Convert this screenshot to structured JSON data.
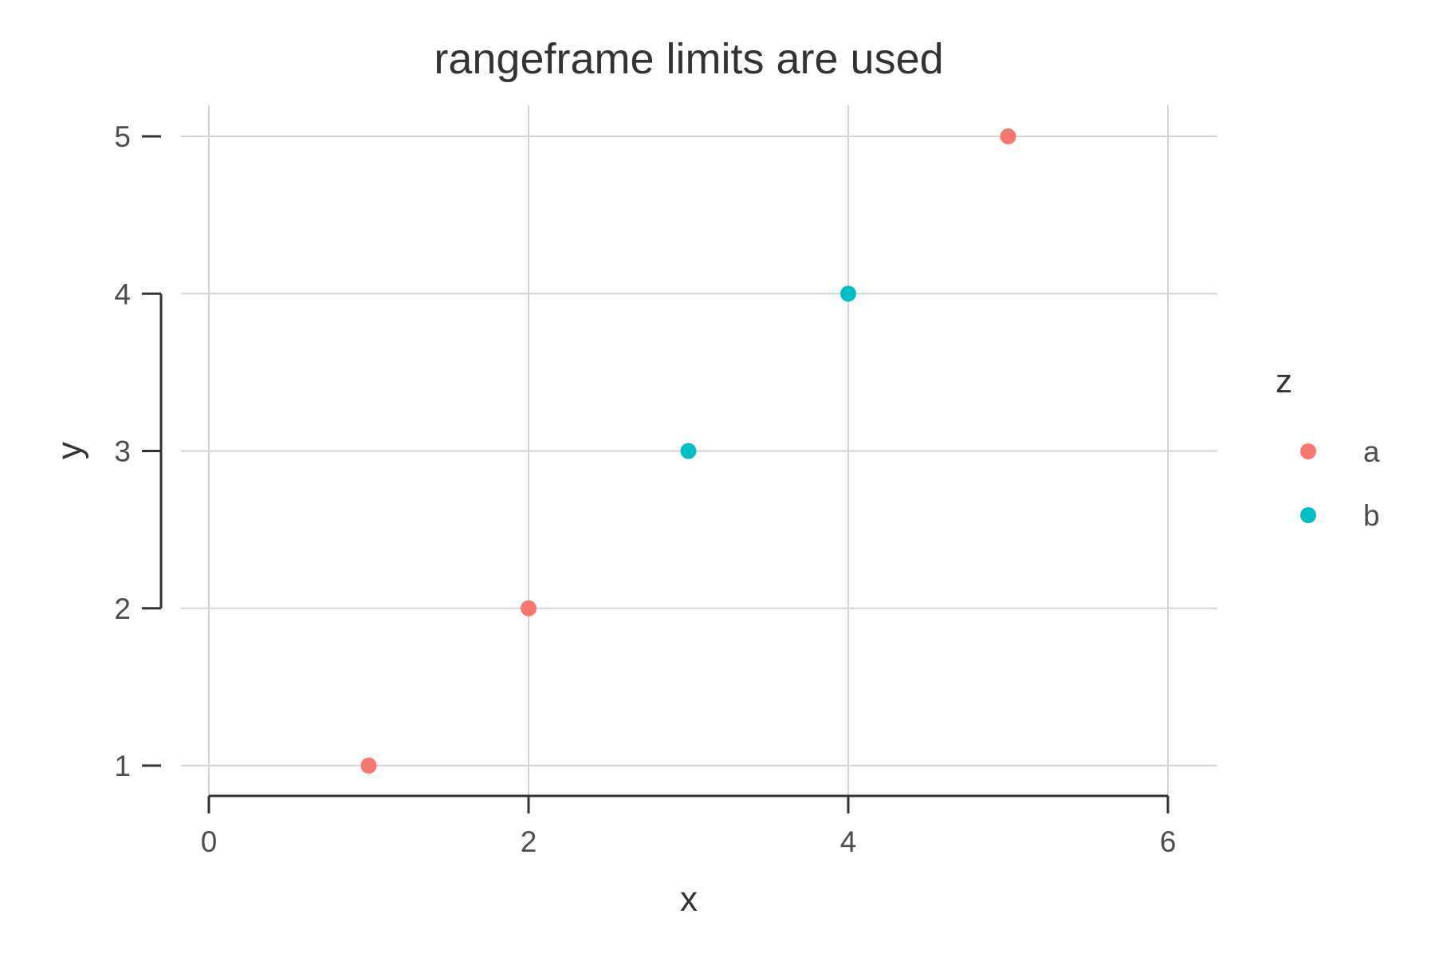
{
  "chart_data": {
    "type": "scatter",
    "title": "rangeframe limits are used",
    "xlabel": "x",
    "ylabel": "y",
    "xlim": [
      -0.15,
      6.15
    ],
    "ylim": [
      0.8,
      5.2
    ],
    "xticks": [
      0,
      2,
      4,
      6
    ],
    "yticks": [
      1,
      2,
      3,
      4,
      5
    ],
    "grid": true,
    "x_grid": [
      0,
      2,
      4,
      6
    ],
    "y_grid": [
      1,
      2,
      3,
      4,
      5
    ],
    "rangeframe": {
      "x": [
        0,
        6
      ],
      "y": [
        2,
        4
      ]
    },
    "legend": {
      "title": "z",
      "placement": "right",
      "entries": [
        {
          "label": "a",
          "color": "#F8766D"
        },
        {
          "label": "b",
          "color": "#00BFC4"
        }
      ]
    },
    "series": [
      {
        "name": "a",
        "color": "#F8766D",
        "points": [
          {
            "x": 1,
            "y": 1
          },
          {
            "x": 2,
            "y": 2
          },
          {
            "x": 5,
            "y": 5
          }
        ]
      },
      {
        "name": "b",
        "color": "#00BFC4",
        "points": [
          {
            "x": 3,
            "y": 3
          },
          {
            "x": 4,
            "y": 4
          }
        ]
      }
    ]
  }
}
